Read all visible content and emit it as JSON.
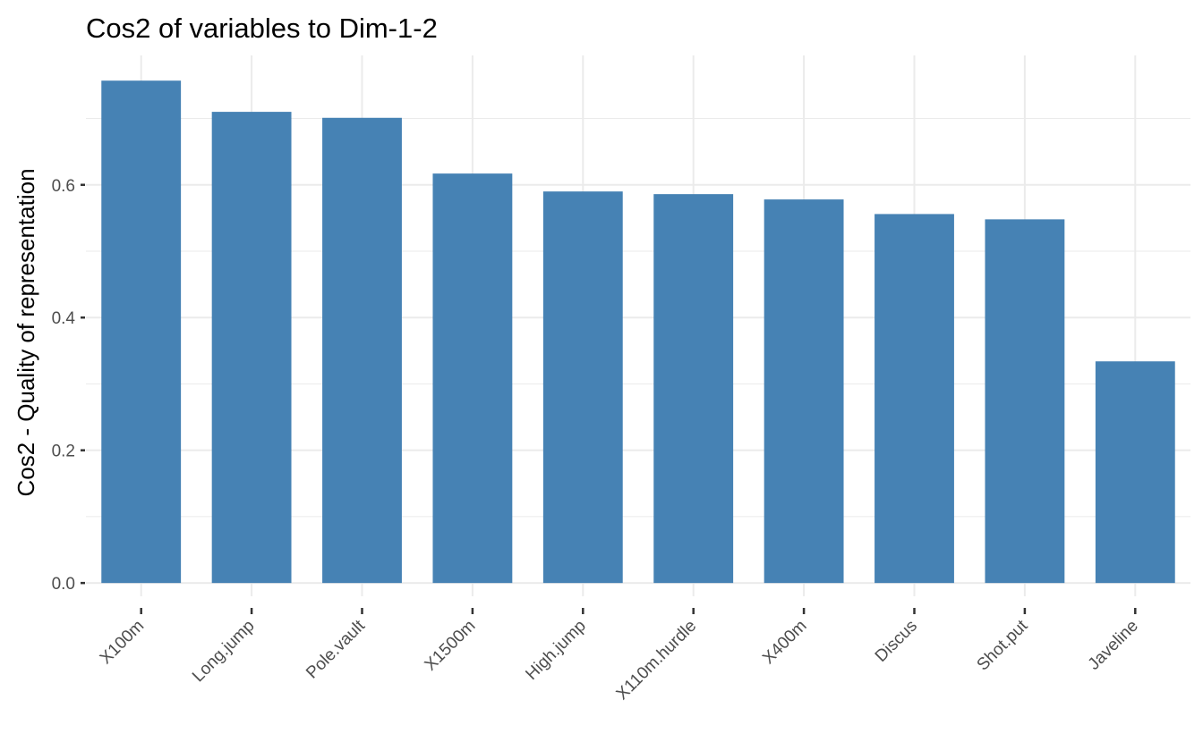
{
  "chart_data": {
    "type": "bar",
    "title": "Cos2 of variables to Dim-1-2",
    "xlabel": "",
    "ylabel": "Cos2 - Quality of representation",
    "categories": [
      "X100m",
      "Long.jump",
      "Pole.vault",
      "X1500m",
      "High.jump",
      "X110m.hurdle",
      "X400m",
      "Discus",
      "Shot.put",
      "Javeline"
    ],
    "values": [
      0.757,
      0.71,
      0.701,
      0.617,
      0.59,
      0.586,
      0.578,
      0.556,
      0.548,
      0.334
    ],
    "ylim": [
      -0.02,
      0.795
    ],
    "yticks": [
      0.0,
      0.2,
      0.4,
      0.6
    ],
    "ytick_labels": [
      "0.0",
      "0.2",
      "0.4",
      "0.6"
    ],
    "grid": true,
    "bar_color": "#4682B4",
    "theme": "minimal"
  }
}
